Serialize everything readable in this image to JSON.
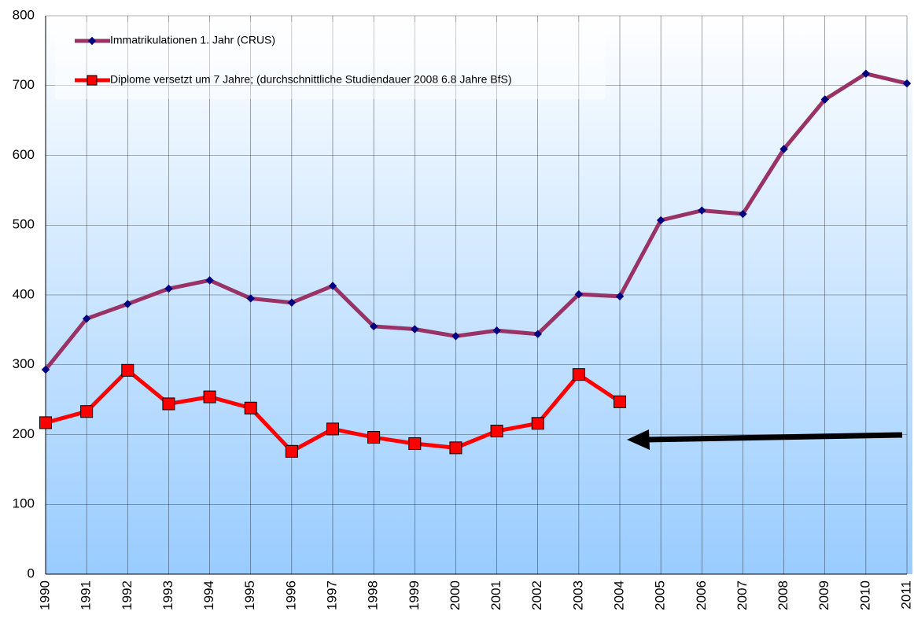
{
  "chart_data": {
    "type": "line",
    "categories": [
      "1990",
      "1991",
      "1992",
      "1993",
      "1994",
      "1995",
      "1996",
      "1997",
      "1998",
      "1999",
      "2000",
      "2001",
      "2002",
      "2003",
      "2004",
      "2005",
      "2006",
      "2007",
      "2008",
      "2009",
      "2010",
      "2011"
    ],
    "series": [
      {
        "name": "Immatrikulationen 1. Jahr (CRUS)",
        "color": "#993366",
        "marker": "diamond",
        "marker_color": "#000080",
        "values": [
          293,
          366,
          387,
          409,
          421,
          395,
          389,
          413,
          355,
          351,
          341,
          349,
          344,
          401,
          398,
          507,
          521,
          516,
          609,
          680,
          717,
          703
        ]
      },
      {
        "name": "Diplome versetzt um 7 Jahre; (durchschnittliche Studiendauer 2008 6.8 Jahre BfS)",
        "color": "#ff0000",
        "marker": "square",
        "marker_color": "#ff0000",
        "values": [
          217,
          233,
          292,
          244,
          254,
          238,
          176,
          208,
          196,
          187,
          181,
          205,
          216,
          286,
          247,
          null,
          null,
          null,
          null,
          null,
          null,
          null
        ]
      }
    ],
    "ylim": [
      0,
      800
    ],
    "yticks": [
      0,
      100,
      200,
      300,
      400,
      500,
      600,
      700,
      800
    ],
    "grid": true
  }
}
